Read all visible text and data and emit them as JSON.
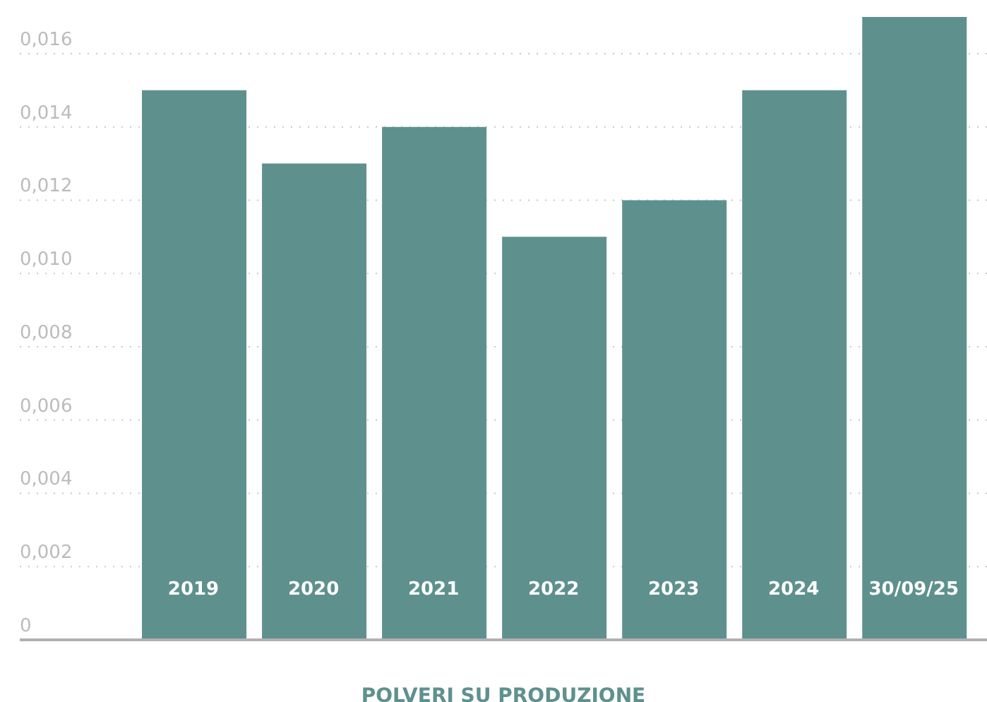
{
  "chart_data": {
    "type": "bar",
    "xlabel": "POLVERI SU PRODUZIONE",
    "categories": [
      "2019",
      "2020",
      "2021",
      "2022",
      "2023",
      "2024",
      "30/09/25"
    ],
    "values": [
      0.015,
      0.013,
      0.014,
      0.011,
      0.012,
      0.015,
      0.017
    ],
    "color": "#5e918d",
    "ylim": [
      0,
      0.017
    ],
    "yticks": [
      0,
      {
        "value": 0.002,
        "label": "0,002"
      },
      {
        "value": 0.004,
        "label": "0,004"
      },
      {
        "value": 0.006,
        "label": "0,006"
      },
      {
        "value": 0.008,
        "label": "0,008"
      },
      {
        "value": 0.01,
        "label": "0,010"
      },
      {
        "value": 0.012,
        "label": "0,012"
      },
      {
        "value": 0.014,
        "label": "0,014"
      },
      {
        "value": 0.016,
        "label": "0,016"
      }
    ],
    "grid": "y"
  }
}
